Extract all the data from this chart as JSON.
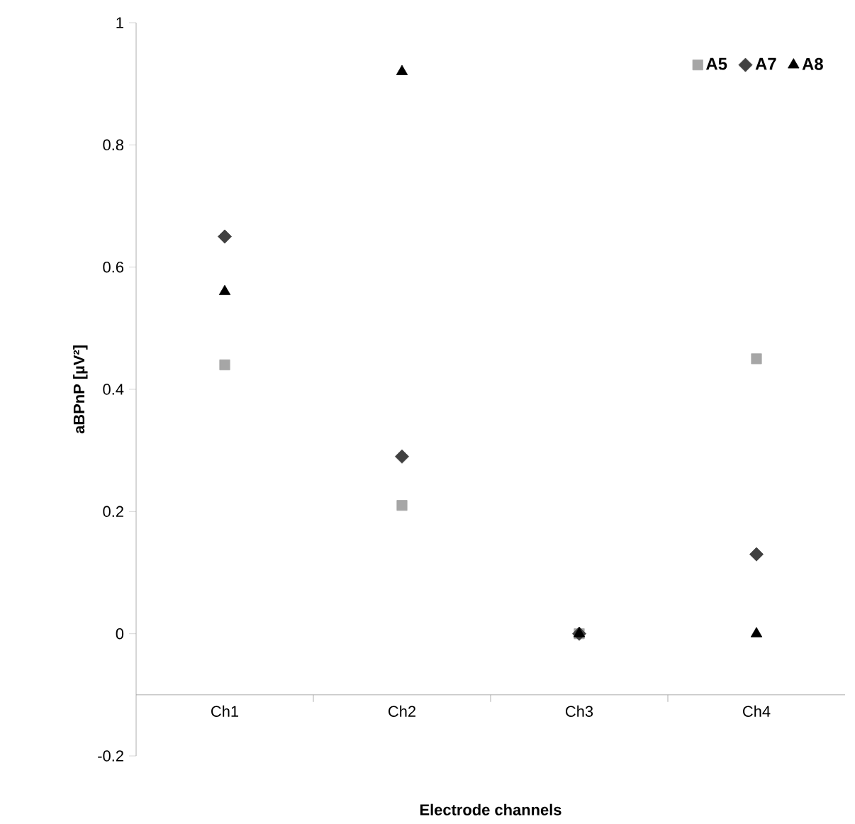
{
  "chart_data": {
    "type": "scatter",
    "xlabel": "Electrode channels",
    "ylabel": "aBPnP [µV²]",
    "categories": [
      "Ch1",
      "Ch2",
      "Ch3",
      "Ch4"
    ],
    "series": [
      {
        "name": "A5",
        "color": "#a6a6a6",
        "marker": "square",
        "values": [
          0.44,
          0.21,
          0,
          0.45
        ]
      },
      {
        "name": "A7",
        "color": "#404040",
        "marker": "diamond",
        "values": [
          0.65,
          0.29,
          0,
          0.13
        ]
      },
      {
        "name": "A8",
        "color": "#000000",
        "marker": "triangle",
        "values": [
          0.56,
          0.92,
          0,
          0
        ]
      }
    ],
    "ylim": [
      -0.2,
      1
    ],
    "yticks": [
      -0.2,
      0,
      0.2,
      0.4,
      0.6,
      0.8,
      1
    ],
    "legend": "top right"
  }
}
